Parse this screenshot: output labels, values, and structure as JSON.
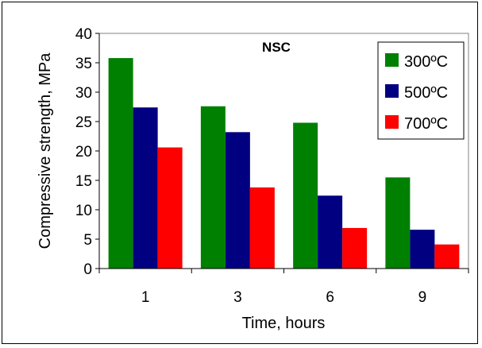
{
  "chart_data": {
    "type": "bar",
    "title": "NSC",
    "xlabel": "Time, hours",
    "ylabel": "Compressive strength, MPa",
    "categories": [
      "1",
      "3",
      "6",
      "9"
    ],
    "series": [
      {
        "name": "300ºC",
        "color": "#008000",
        "values": [
          35.8,
          27.6,
          24.8,
          15.5
        ]
      },
      {
        "name": "500ºC",
        "color": "#000080",
        "values": [
          27.4,
          23.2,
          12.4,
          6.6
        ]
      },
      {
        "name": "700ºC",
        "color": "#ff0000",
        "values": [
          20.6,
          13.8,
          6.9,
          4.1
        ]
      }
    ],
    "ylim": [
      0,
      40
    ],
    "yticks": [
      "0",
      "5",
      "10",
      "15",
      "20",
      "25",
      "30",
      "35",
      "40"
    ],
    "grid": false,
    "legend_position": "top-right"
  }
}
